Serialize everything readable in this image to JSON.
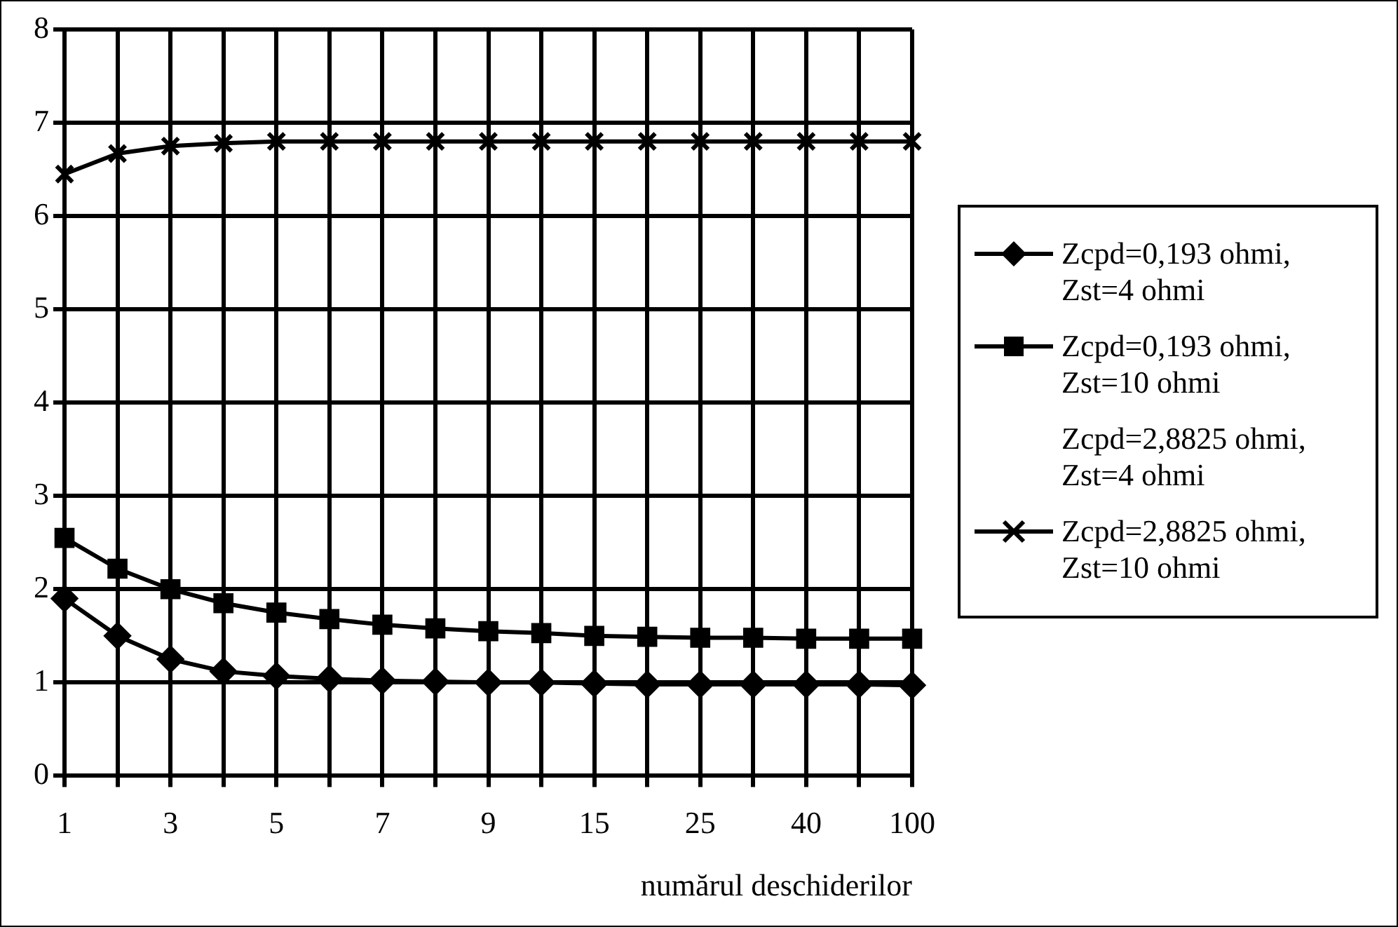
{
  "chart_data": {
    "type": "line",
    "xlabel": "numărul deschiderilor",
    "categories": [
      "1",
      null,
      "3",
      null,
      "5",
      null,
      "7",
      null,
      "9",
      null,
      "15",
      null,
      "25",
      null,
      "40",
      null,
      "100"
    ],
    "series": [
      {
        "name": "Zcpd=0,193 ohmi, Zst=4 ohmi",
        "color": "#000000",
        "marker": "diamond",
        "values": [
          1.9,
          1.5,
          1.25,
          1.12,
          1.07,
          1.04,
          1.02,
          1.01,
          1.0,
          1.0,
          0.99,
          0.98,
          0.98,
          0.98,
          0.98,
          0.98,
          0.97
        ]
      },
      {
        "name": "Zcpd=0,193 ohmi, Zst=10 ohmi",
        "color": "#000000",
        "marker": "square",
        "values": [
          2.55,
          2.22,
          2.0,
          1.85,
          1.75,
          1.68,
          1.62,
          1.58,
          1.55,
          1.53,
          1.5,
          1.49,
          1.48,
          1.48,
          1.47,
          1.47,
          1.47
        ]
      },
      {
        "name": "Zcpd=2,8825 ohmi, Zst=4 ohmi",
        "marker": "none",
        "values": [
          null,
          null,
          null,
          null,
          null,
          null,
          null,
          null,
          null,
          null,
          null,
          null,
          null,
          null,
          null,
          null,
          null
        ]
      },
      {
        "name": "Zcpd=2,8825 ohmi, Zst=10 ohmi",
        "color": "#000000",
        "marker": "cross",
        "values": [
          6.45,
          6.67,
          6.75,
          6.78,
          6.8,
          6.8,
          6.8,
          6.8,
          6.8,
          6.8,
          6.8,
          6.8,
          6.8,
          6.8,
          6.8,
          6.8,
          6.8
        ]
      }
    ],
    "ylim": [
      0,
      8
    ],
    "yticks": [
      0,
      1,
      2,
      3,
      4,
      5,
      6,
      7,
      8
    ],
    "grid": true,
    "legend": "right"
  }
}
